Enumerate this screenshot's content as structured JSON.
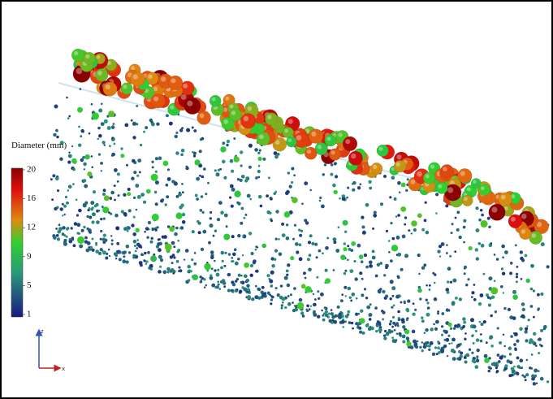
{
  "colorbar": {
    "title": "Diameter (mm)",
    "ticks": [
      20,
      16,
      12,
      9,
      5,
      1
    ]
  },
  "axes": {
    "vertical": "z",
    "horizontal": "x"
  }
}
